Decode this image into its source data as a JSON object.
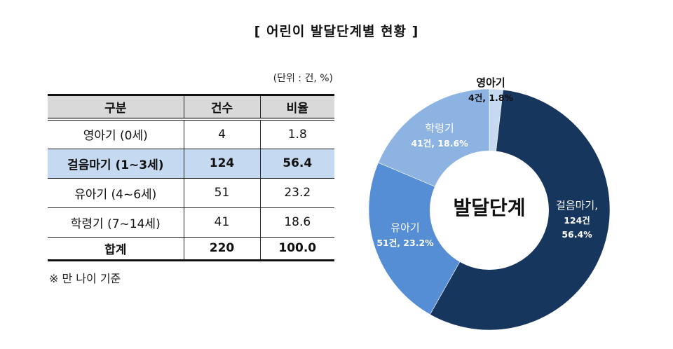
{
  "title": "[ 어린이 발달단계별 현황 ]",
  "table": {
    "unit": "(단위 : 건, %)",
    "headers": [
      "구분",
      "건수",
      "비율"
    ],
    "rows": [
      {
        "label": "영아기 (0세)",
        "count": "4",
        "ratio": "1.8",
        "highlight": false
      },
      {
        "label": "걸음마기 (1~3세)",
        "count": "124",
        "ratio": "56.4",
        "highlight": true
      },
      {
        "label": "유아기 (4~6세)",
        "count": "51",
        "ratio": "23.2",
        "highlight": false
      },
      {
        "label": "학령기 (7~14세)",
        "count": "41",
        "ratio": "18.6",
        "highlight": false
      }
    ],
    "total": {
      "label": "합계",
      "count": "220",
      "ratio": "100.0"
    },
    "note": "※ 만 나이 기준"
  },
  "donut": {
    "center_label": "발달단계",
    "labels": [
      {
        "name": "영아기",
        "detail": "4건, 1.8%"
      },
      {
        "name": "걸음마기,",
        "detail1": "124건",
        "detail2": "56.4%"
      },
      {
        "name": "유아기",
        "detail": "51건, 23.2%"
      },
      {
        "name": "학령기",
        "detail": "41건, 18.6%"
      }
    ]
  },
  "colors": {
    "infant": "#c5d9f1",
    "toddler": "#17365d",
    "preschool": "#558ed5",
    "school": "#8db3e2",
    "header_bg": "#d9d9d9",
    "highlight_bg": "#c5d9f1"
  },
  "chart_data": [
    {
      "type": "table",
      "title": "어린이 발달단계별 현황",
      "unit": "건, %",
      "columns": [
        "구분",
        "건수",
        "비율"
      ],
      "rows": [
        [
          "영아기 (0세)",
          4,
          1.8
        ],
        [
          "걸음마기 (1~3세)",
          124,
          56.4
        ],
        [
          "유아기 (4~6세)",
          51,
          23.2
        ],
        [
          "학령기 (7~14세)",
          41,
          18.6
        ],
        [
          "합계",
          220,
          100.0
        ]
      ],
      "note": "※ 만 나이 기준"
    },
    {
      "type": "pie",
      "subtype": "donut",
      "title": "발달단계",
      "categories": [
        "영아기",
        "걸음마기",
        "유아기",
        "학령기"
      ],
      "values": [
        4,
        124,
        51,
        41
      ],
      "percentages": [
        1.8,
        56.4,
        23.2,
        18.6
      ],
      "colors": [
        "#c5d9f1",
        "#17365d",
        "#558ed5",
        "#8db3e2"
      ],
      "start_angle": "12 o'clock, clockwise",
      "legend": "none (data labels on slices)"
    }
  ]
}
